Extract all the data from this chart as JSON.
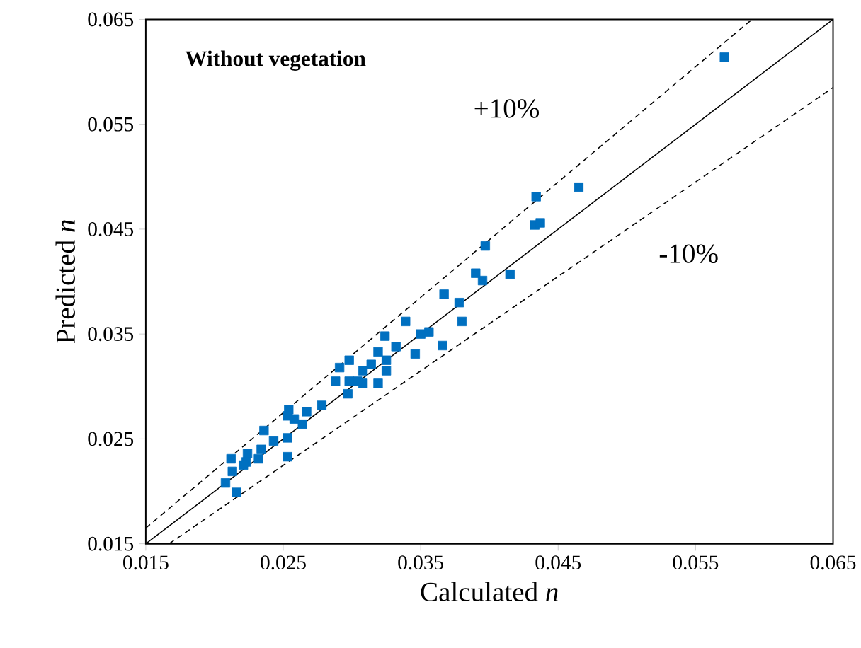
{
  "chart_data": {
    "type": "scatter",
    "title": "Without vegetation",
    "xlabel": "Calculated *n*",
    "ylabel": "Predicted *n*",
    "xlim": [
      0.015,
      0.065
    ],
    "ylim": [
      0.015,
      0.065
    ],
    "xticks": [
      0.015,
      0.025,
      0.035,
      0.045,
      0.055,
      0.065
    ],
    "yticks": [
      0.015,
      0.025,
      0.035,
      0.045,
      0.055,
      0.065
    ],
    "annotations": [
      "+10%",
      "-10%"
    ],
    "series": [
      {
        "color": "#0070c0",
        "marker": "square",
        "x": [
          0.0571,
          0.0434,
          0.0465,
          0.0433,
          0.0437,
          0.0397,
          0.039,
          0.0395,
          0.0415,
          0.0367,
          0.0378,
          0.038,
          0.0339,
          0.035,
          0.0356,
          0.0366,
          0.0324,
          0.0332,
          0.0346,
          0.0319,
          0.0314,
          0.0325,
          0.0325,
          0.0308,
          0.0308,
          0.0319,
          0.0291,
          0.0298,
          0.0288,
          0.0298,
          0.0304,
          0.0297,
          0.0278,
          0.0254,
          0.0253,
          0.0258,
          0.0267,
          0.0264,
          0.0236,
          0.0243,
          0.0253,
          0.0234,
          0.0224,
          0.0232,
          0.0212,
          0.0253,
          0.0223,
          0.0208,
          0.0216,
          0.0213,
          0.0221
        ],
        "values": [
          0.0614,
          0.0481,
          0.049,
          0.0454,
          0.0456,
          0.0434,
          0.0408,
          0.0401,
          0.0407,
          0.0388,
          0.038,
          0.0362,
          0.0362,
          0.035,
          0.0352,
          0.0339,
          0.0348,
          0.0338,
          0.0331,
          0.0333,
          0.0321,
          0.0325,
          0.0315,
          0.0315,
          0.0303,
          0.0303,
          0.0318,
          0.0325,
          0.0305,
          0.0305,
          0.0305,
          0.0293,
          0.0282,
          0.0278,
          0.0272,
          0.0269,
          0.0276,
          0.0264,
          0.0258,
          0.0248,
          0.0251,
          0.024,
          0.0236,
          0.0231,
          0.0231,
          0.0233,
          0.0228,
          0.0208,
          0.0199,
          0.0219,
          0.0225
        ]
      },
      {
        "type": "line",
        "color": "#000000",
        "line_style": "solid",
        "x": [
          0.015,
          0.065
        ],
        "values": [
          0.015,
          0.065
        ]
      },
      {
        "type": "line",
        "color": "#000000",
        "line_style": "dashed",
        "x": [
          0.015,
          0.0591
        ],
        "values": [
          0.0165,
          0.065
        ]
      },
      {
        "type": "line",
        "color": "#000000",
        "line_style": "dashed",
        "x": [
          0.0167,
          0.065
        ],
        "values": [
          0.015,
          0.0585
        ]
      }
    ]
  }
}
